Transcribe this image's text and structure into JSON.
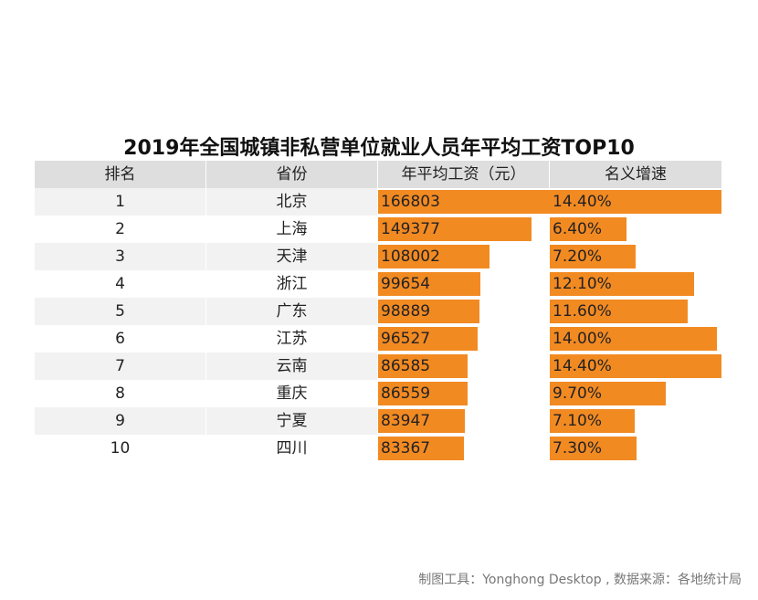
{
  "chart_data": {
    "type": "table",
    "title": "2019年全国城镇非私营单位就业人员年平均工资TOP10",
    "columns": [
      "排名",
      "省份",
      "年平均工资（元）",
      "名义增速"
    ],
    "rows": [
      {
        "rank": "1",
        "province": "北京",
        "salary": 166803,
        "salary_label": "166803",
        "growth": 14.4,
        "growth_label": "14.40%"
      },
      {
        "rank": "2",
        "province": "上海",
        "salary": 149377,
        "salary_label": "149377",
        "growth": 6.4,
        "growth_label": "6.40%"
      },
      {
        "rank": "3",
        "province": "天津",
        "salary": 108002,
        "salary_label": "108002",
        "growth": 7.2,
        "growth_label": "7.20%"
      },
      {
        "rank": "4",
        "province": "浙江",
        "salary": 99654,
        "salary_label": "99654",
        "growth": 12.1,
        "growth_label": "12.10%"
      },
      {
        "rank": "5",
        "province": "广东",
        "salary": 98889,
        "salary_label": "98889",
        "growth": 11.6,
        "growth_label": "11.60%"
      },
      {
        "rank": "6",
        "province": "江苏",
        "salary": 96527,
        "salary_label": "96527",
        "growth": 14.0,
        "growth_label": "14.00%"
      },
      {
        "rank": "7",
        "province": "云南",
        "salary": 86585,
        "salary_label": "86585",
        "growth": 14.4,
        "growth_label": "14.40%"
      },
      {
        "rank": "8",
        "province": "重庆",
        "salary": 86559,
        "salary_label": "86559",
        "growth": 9.7,
        "growth_label": "9.70%"
      },
      {
        "rank": "9",
        "province": "宁夏",
        "salary": 83947,
        "salary_label": "83947",
        "growth": 7.1,
        "growth_label": "7.10%"
      },
      {
        "rank": "10",
        "province": "四川",
        "salary": 83367,
        "salary_label": "83367",
        "growth": 7.3,
        "growth_label": "7.30%"
      }
    ],
    "bar_color": "#f28a22"
  },
  "footer": "制图工具：Yonghong Desktop , 数据来源：各地统计局"
}
